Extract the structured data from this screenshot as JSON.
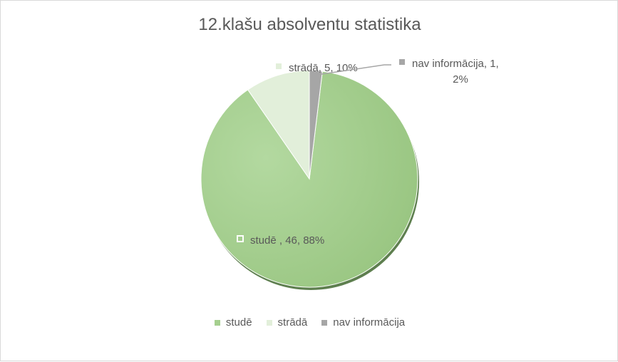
{
  "chart_data": {
    "type": "pie",
    "title": "12.klašu absolventu statistika",
    "slices": [
      {
        "label": "studē",
        "value": 46,
        "percent": "88%",
        "data_label": "studē , 46, 88%",
        "color": "#a5cf8f"
      },
      {
        "label": "strādā",
        "value": 5,
        "percent": "10%",
        "data_label": "strādā, 5, 10%",
        "color": "#e2efda"
      },
      {
        "label": "nav informācija",
        "value": 1,
        "percent": "2%",
        "data_label_lines": [
          "nav informācija, 1,",
          "2%"
        ],
        "color": "#a6a6a6"
      }
    ],
    "legend": [
      "studē",
      "strādā",
      "nav informācija"
    ],
    "legend_position": "bottom"
  }
}
